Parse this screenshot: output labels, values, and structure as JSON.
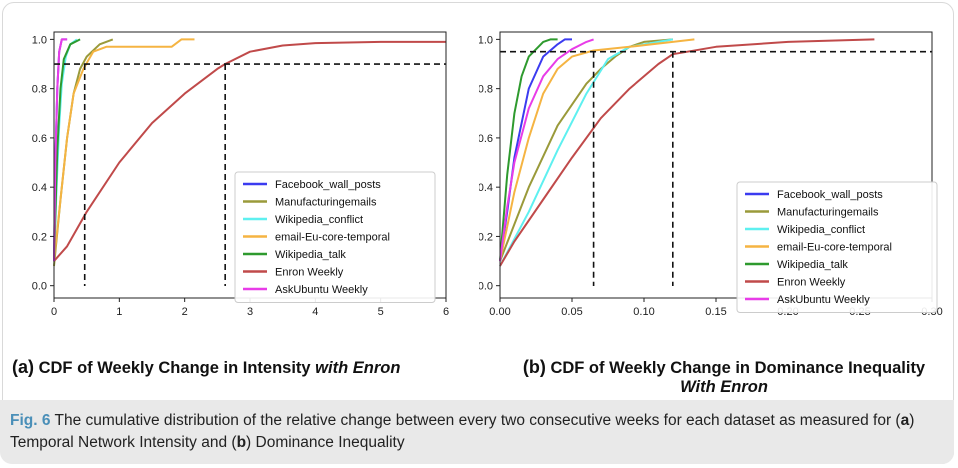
{
  "chart_data": [
    {
      "type": "line",
      "panel_tag": "(a)",
      "caption": "CDF of Weekly Change in Intensity with Enron",
      "caption_plain": "CDF of Weekly Change in Intensity ",
      "caption_emph": "with Enron",
      "xlim": [
        0,
        6
      ],
      "ylim": [
        -0.05,
        1.03
      ],
      "xticks": [
        0,
        1,
        2,
        3,
        4,
        5,
        6
      ],
      "yticks": [
        0.0,
        0.2,
        0.4,
        0.6,
        0.8,
        1.0
      ],
      "xtick_labels": [
        "0",
        "1",
        "2",
        "3",
        "4",
        "5",
        "6"
      ],
      "ytick_labels": [
        "0.0",
        "0.2",
        "0.4",
        "0.6",
        "0.8",
        "1.0"
      ],
      "grid": false,
      "legend_position": "lower-right",
      "reference_lines": {
        "horizontal_y": 0.9,
        "vertical_x": [
          0.47,
          2.62
        ]
      },
      "series": [
        {
          "name": "Facebook_wall_posts",
          "color": "#3b3bf0",
          "points": [
            [
              0,
              0.1
            ],
            [
              0.02,
              0.5
            ],
            [
              0.05,
              0.8
            ],
            [
              0.08,
              0.95
            ],
            [
              0.12,
              1.0
            ],
            [
              0.2,
              1.0
            ]
          ]
        },
        {
          "name": "Manufacturingemails",
          "color": "#9a9a3a",
          "points": [
            [
              0,
              0.08
            ],
            [
              0.1,
              0.35
            ],
            [
              0.2,
              0.6
            ],
            [
              0.3,
              0.78
            ],
            [
              0.4,
              0.88
            ],
            [
              0.5,
              0.93
            ],
            [
              0.7,
              0.98
            ],
            [
              0.9,
              1.0
            ]
          ]
        },
        {
          "name": "Wikipedia_conflict",
          "color": "#5ef0f0",
          "points": [
            [
              0,
              0.1
            ],
            [
              0.04,
              0.4
            ],
            [
              0.08,
              0.65
            ],
            [
              0.12,
              0.82
            ],
            [
              0.18,
              0.93
            ],
            [
              0.25,
              0.98
            ],
            [
              0.35,
              1.0
            ]
          ]
        },
        {
          "name": "email-Eu-core-temporal",
          "color": "#f5b442",
          "points": [
            [
              0,
              0.1
            ],
            [
              0.1,
              0.35
            ],
            [
              0.2,
              0.6
            ],
            [
              0.3,
              0.78
            ],
            [
              0.45,
              0.88
            ],
            [
              0.6,
              0.95
            ],
            [
              0.8,
              0.97
            ],
            [
              1.8,
              0.97
            ],
            [
              1.95,
              1.0
            ],
            [
              2.15,
              1.0
            ]
          ]
        },
        {
          "name": "Wikipedia_talk",
          "color": "#2e9a2e",
          "points": [
            [
              0,
              0.1
            ],
            [
              0.05,
              0.55
            ],
            [
              0.1,
              0.8
            ],
            [
              0.15,
              0.92
            ],
            [
              0.25,
              0.98
            ],
            [
              0.4,
              1.0
            ]
          ]
        },
        {
          "name": "Enron Weekly",
          "color": "#c04a4a",
          "points": [
            [
              0,
              0.1
            ],
            [
              0.2,
              0.16
            ],
            [
              0.5,
              0.3
            ],
            [
              1,
              0.5
            ],
            [
              1.5,
              0.66
            ],
            [
              2,
              0.78
            ],
            [
              2.5,
              0.88
            ],
            [
              2.62,
              0.9
            ],
            [
              3,
              0.95
            ],
            [
              3.5,
              0.975
            ],
            [
              4,
              0.985
            ],
            [
              5,
              0.99
            ],
            [
              6,
              0.99
            ]
          ]
        },
        {
          "name": "AskUbuntu Weekly",
          "color": "#e83ce8",
          "points": [
            [
              0,
              0.1
            ],
            [
              0.02,
              0.5
            ],
            [
              0.05,
              0.8
            ],
            [
              0.08,
              0.95
            ],
            [
              0.12,
              1.0
            ],
            [
              0.2,
              1.0
            ]
          ]
        }
      ]
    },
    {
      "type": "line",
      "panel_tag": "(b)",
      "caption": "CDF of Weekly Change in Dominance Inequality With Enron",
      "caption_plain": "CDF of Weekly Change in Dominance Inequality",
      "caption_emph": "With Enron",
      "xlim": [
        0,
        0.3
      ],
      "ylim": [
        -0.05,
        1.03
      ],
      "xticks": [
        0,
        0.05,
        0.1,
        0.15,
        0.2,
        0.25,
        0.3
      ],
      "yticks": [
        0.0,
        0.2,
        0.4,
        0.6,
        0.8,
        1.0
      ],
      "xtick_labels": [
        "0.00",
        "0.05",
        "0.10",
        "0.15",
        "0.20",
        "0.25",
        "0.30"
      ],
      "ytick_labels": [
        "0.0",
        "0.2",
        "0.4",
        "0.6",
        "0.8",
        "1.0"
      ],
      "grid": false,
      "legend_position": "lower-right",
      "reference_lines": {
        "horizontal_y": 0.95,
        "vertical_x": [
          0.065,
          0.12
        ]
      },
      "series": [
        {
          "name": "Facebook_wall_posts",
          "color": "#3b3bf0",
          "points": [
            [
              0,
              0.1
            ],
            [
              0.005,
              0.3
            ],
            [
              0.01,
              0.52
            ],
            [
              0.02,
              0.8
            ],
            [
              0.03,
              0.93
            ],
            [
              0.04,
              0.98
            ],
            [
              0.045,
              1.0
            ],
            [
              0.05,
              1.0
            ]
          ]
        },
        {
          "name": "Manufacturingemails",
          "color": "#9a9a3a",
          "points": [
            [
              0,
              0.1
            ],
            [
              0.02,
              0.4
            ],
            [
              0.04,
              0.65
            ],
            [
              0.06,
              0.82
            ],
            [
              0.07,
              0.88
            ],
            [
              0.08,
              0.93
            ],
            [
              0.09,
              0.97
            ],
            [
              0.1,
              0.99
            ],
            [
              0.12,
              1.0
            ]
          ]
        },
        {
          "name": "Wikipedia_conflict",
          "color": "#5ef0f0",
          "points": [
            [
              0,
              0.08
            ],
            [
              0.02,
              0.3
            ],
            [
              0.04,
              0.55
            ],
            [
              0.06,
              0.78
            ],
            [
              0.075,
              0.92
            ],
            [
              0.09,
              0.97
            ],
            [
              0.11,
              0.99
            ],
            [
              0.12,
              1.0
            ]
          ]
        },
        {
          "name": "email-Eu-core-temporal",
          "color": "#f5b442",
          "points": [
            [
              0,
              0.1
            ],
            [
              0.01,
              0.38
            ],
            [
              0.02,
              0.6
            ],
            [
              0.03,
              0.78
            ],
            [
              0.04,
              0.88
            ],
            [
              0.05,
              0.93
            ],
            [
              0.065,
              0.955
            ],
            [
              0.09,
              0.97
            ],
            [
              0.12,
              0.99
            ],
            [
              0.135,
              1.0
            ]
          ]
        },
        {
          "name": "Wikipedia_talk",
          "color": "#2e9a2e",
          "points": [
            [
              0,
              0.1
            ],
            [
              0.005,
              0.45
            ],
            [
              0.01,
              0.7
            ],
            [
              0.015,
              0.85
            ],
            [
              0.02,
              0.93
            ],
            [
              0.03,
              0.99
            ],
            [
              0.035,
              1.0
            ],
            [
              0.04,
              1.0
            ]
          ]
        },
        {
          "name": "Enron Weekly",
          "color": "#c04a4a",
          "points": [
            [
              0,
              0.08
            ],
            [
              0.01,
              0.18
            ],
            [
              0.03,
              0.35
            ],
            [
              0.05,
              0.52
            ],
            [
              0.07,
              0.68
            ],
            [
              0.09,
              0.8
            ],
            [
              0.11,
              0.9
            ],
            [
              0.12,
              0.94
            ],
            [
              0.15,
              0.97
            ],
            [
              0.2,
              0.99
            ],
            [
              0.26,
              1.0
            ]
          ]
        },
        {
          "name": "AskUbuntu Weekly",
          "color": "#e83ce8",
          "points": [
            [
              0,
              0.1
            ],
            [
              0.005,
              0.32
            ],
            [
              0.01,
              0.5
            ],
            [
              0.02,
              0.72
            ],
            [
              0.03,
              0.85
            ],
            [
              0.04,
              0.92
            ],
            [
              0.05,
              0.96
            ],
            [
              0.06,
              0.99
            ],
            [
              0.065,
              1.0
            ]
          ]
        }
      ]
    }
  ],
  "figure_caption": {
    "label": "Fig. 6",
    "part1": " The cumulative distribution of the relative change between every two consecutive weeks for each dataset as measured for (",
    "a": "a",
    "part2": ") Temporal Network Intensity and (",
    "b": "b",
    "part3": ") Dominance Inequality"
  }
}
